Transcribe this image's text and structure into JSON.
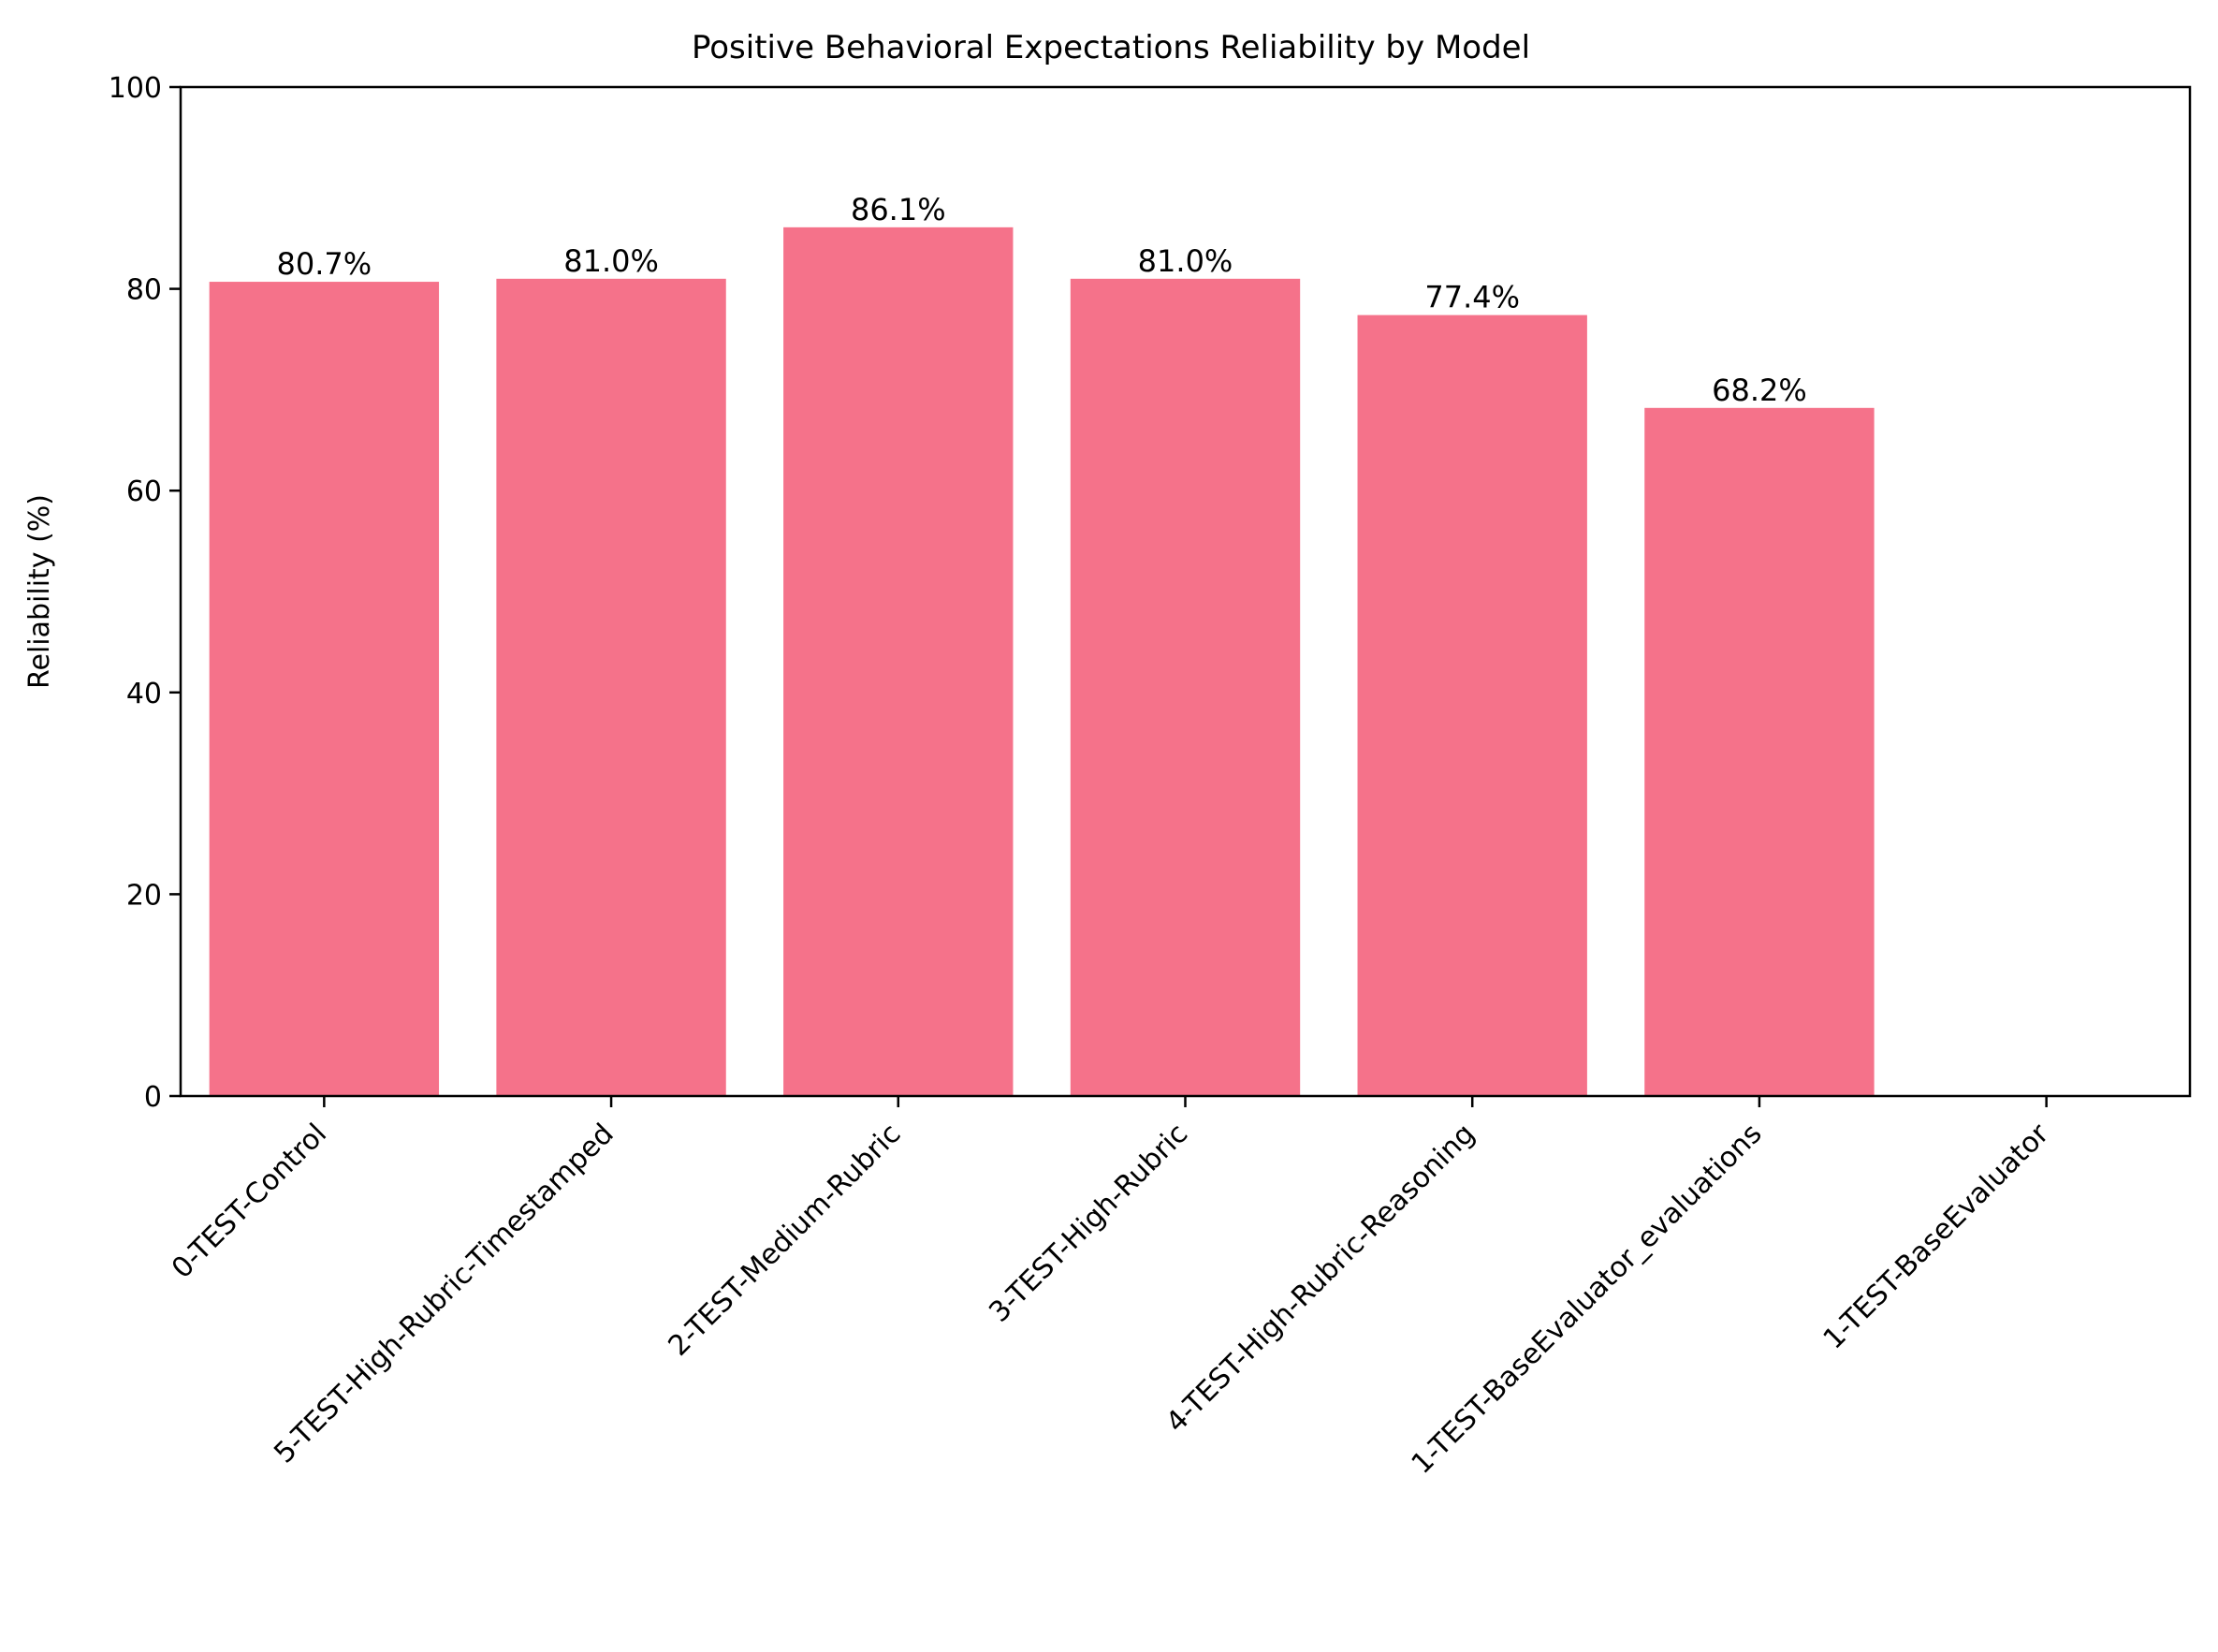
{
  "chart_data": {
    "type": "bar",
    "title": "Positive Behavioral Expectations Reliability by Model",
    "xlabel": "",
    "ylabel": "Reliability (%)",
    "ylim": [
      0,
      100
    ],
    "yticks": [
      0,
      20,
      40,
      60,
      80,
      100
    ],
    "xlim": [
      -0.5,
      6.5
    ],
    "categories": [
      "0-TEST-Control",
      "5-TEST-High-Rubric-Timestamped",
      "2-TEST-Medium-Rubric",
      "3-TEST-High-Rubric",
      "4-TEST-High-Rubric-Reasoning",
      "1-TEST-BaseEvaluator_evaluations",
      "1-TEST-BaseEvaluator"
    ],
    "values": [
      80.7,
      81.0,
      86.1,
      81.0,
      77.4,
      68.2,
      null
    ],
    "data_labels": [
      "80.7%",
      "81.0%",
      "86.1%",
      "81.0%",
      "77.4%",
      "68.2%",
      ""
    ],
    "bar_color": "#f5728a",
    "grid": false,
    "legend": "none"
  }
}
